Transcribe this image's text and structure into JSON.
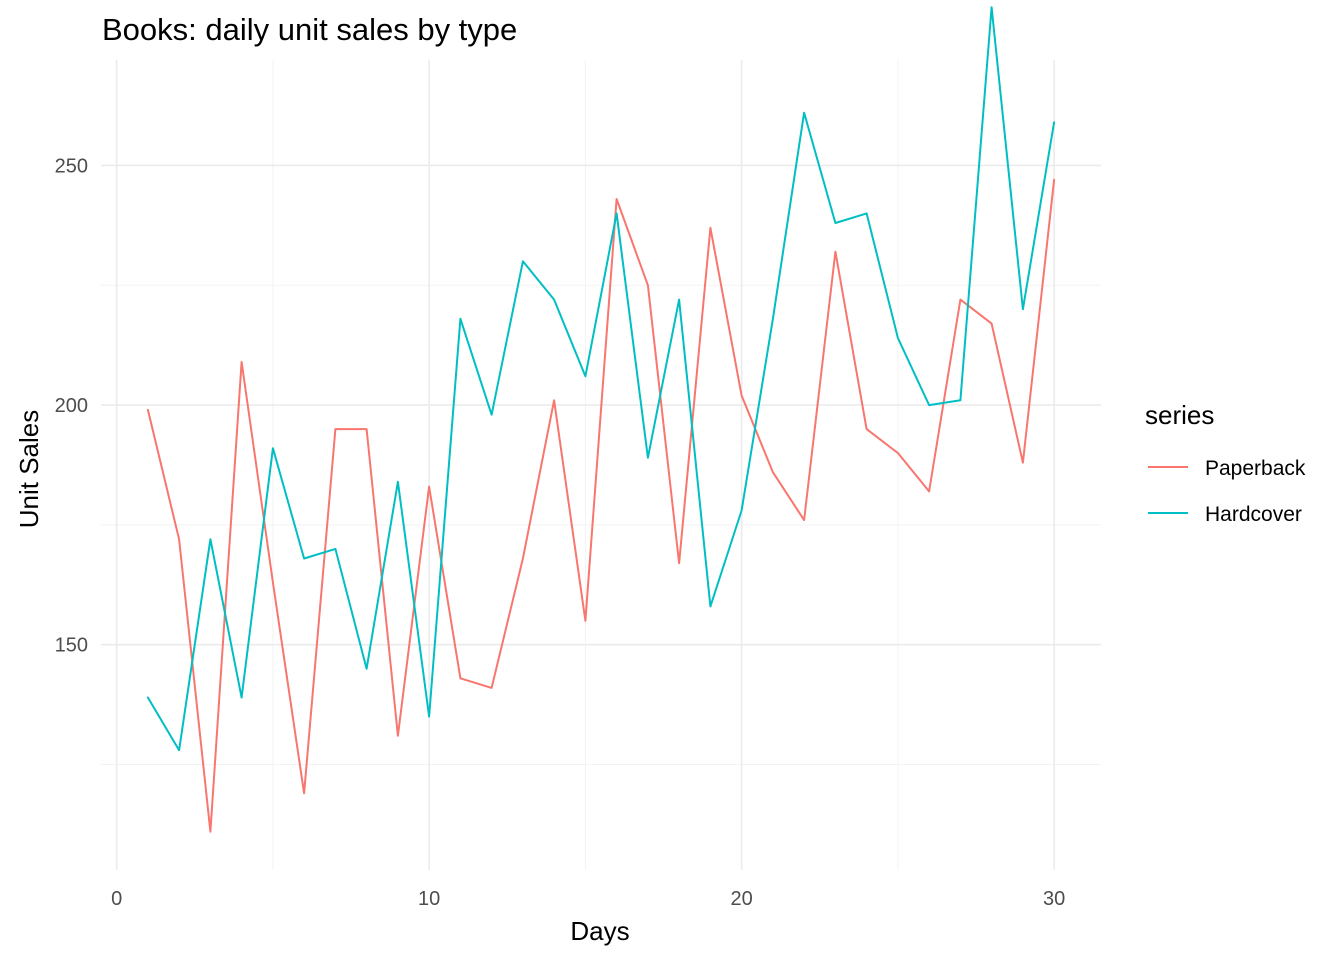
{
  "chart_data": {
    "type": "line",
    "title": "Books: daily unit sales by type",
    "xlabel": "Days",
    "ylabel": "Unit Sales",
    "xlim": [
      -0.5,
      31.5
    ],
    "ylim": [
      103,
      272
    ],
    "x_ticks": [
      0,
      10,
      20,
      30
    ],
    "y_ticks": [
      150,
      200,
      250
    ],
    "grid": true,
    "legend": {
      "title": "series",
      "placement": "right"
    },
    "x": [
      1,
      2,
      3,
      4,
      5,
      6,
      7,
      8,
      9,
      10,
      11,
      12,
      13,
      14,
      15,
      16,
      17,
      18,
      19,
      20,
      21,
      22,
      23,
      24,
      25,
      26,
      27,
      28,
      29,
      30
    ],
    "series": [
      {
        "name": "Paperback",
        "color": "#F8766D",
        "values": [
          199,
          172,
          111,
          209,
          163,
          119,
          195,
          195,
          131,
          183,
          143,
          141,
          168,
          201,
          155,
          243,
          225,
          167,
          237,
          202,
          186,
          176,
          232,
          195,
          190,
          182,
          222,
          217,
          188,
          247
        ]
      },
      {
        "name": "Hardcover",
        "color": "#00BFC4",
        "values": [
          139,
          128,
          172,
          139,
          191,
          168,
          170,
          145,
          184,
          135,
          218,
          198,
          230,
          222,
          206,
          240,
          189,
          222,
          158,
          178,
          218,
          261,
          238,
          240,
          214,
          200,
          201,
          283,
          220,
          259
        ]
      }
    ]
  }
}
